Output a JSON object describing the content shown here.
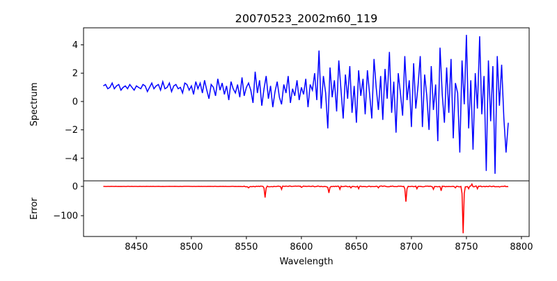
{
  "chart_data": {
    "type": "line",
    "title": "20070523_2002m60_119",
    "xlabel": "Wavelength",
    "xlim": [
      8402,
      8807
    ],
    "xticks": [
      8450,
      8500,
      8550,
      8600,
      8650,
      8700,
      8750,
      8800
    ],
    "panels": [
      {
        "name": "spectrum",
        "ylabel": "Spectrum",
        "ylim": [
          -5.6,
          5.2
        ],
        "yticks": [
          4,
          2,
          0,
          -2,
          -4
        ],
        "color": "#0000ff",
        "x_start": 8420,
        "x_step": 2,
        "values": [
          1.1,
          1.2,
          0.9,
          1.0,
          1.3,
          0.9,
          1.1,
          1.2,
          0.8,
          1.0,
          1.1,
          0.9,
          1.2,
          1.0,
          0.8,
          1.1,
          1.0,
          0.9,
          1.2,
          1.1,
          0.7,
          1.0,
          1.3,
          0.9,
          1.1,
          1.2,
          0.8,
          1.4,
          0.9,
          1.0,
          1.3,
          0.7,
          1.1,
          1.2,
          0.9,
          1.0,
          0.6,
          1.3,
          1.2,
          0.8,
          1.1,
          0.5,
          1.4,
          0.9,
          1.3,
          0.6,
          1.5,
          0.8,
          0.2,
          1.2,
          1.0,
          0.4,
          1.6,
          0.8,
          1.3,
          0.5,
          1.1,
          0.1,
          1.4,
          0.9,
          0.6,
          1.2,
          0.3,
          1.7,
          0.4,
          1.0,
          1.3,
          0.8,
          -0.1,
          2.1,
          0.6,
          1.5,
          -0.3,
          0.9,
          1.8,
          0.2,
          1.1,
          -0.4,
          0.7,
          1.4,
          0.3,
          -0.2,
          1.2,
          0.6,
          1.8,
          -0.1,
          0.9,
          0.4,
          1.5,
          0.1,
          1.0,
          0.5,
          1.6,
          -0.4,
          1.2,
          0.8,
          2.0,
          0.1,
          3.6,
          -0.5,
          1.8,
          0.6,
          -1.9,
          2.4,
          0.3,
          1.5,
          -0.7,
          2.9,
          0.8,
          -1.2,
          1.9,
          0.2,
          2.5,
          -0.8,
          1.1,
          -1.5,
          2.2,
          0.4,
          1.6,
          -0.9,
          2.2,
          0.5,
          -1.2,
          3.0,
          1.0,
          -0.6,
          1.8,
          -1.3,
          2.3,
          0.2,
          3.5,
          -0.8,
          1.4,
          -2.2,
          2.0,
          0.6,
          -1.0,
          3.2,
          0.1,
          1.5,
          -1.8,
          2.7,
          -0.5,
          1.1,
          3.2,
          -1.8,
          1.9,
          0.4,
          -2.0,
          2.5,
          -0.6,
          1.2,
          -2.8,
          3.8,
          0.5,
          -1.5,
          2.4,
          -0.8,
          3.0,
          -2.6,
          1.3,
          0.6,
          -3.6,
          2.9,
          -0.2,
          4.7,
          -1.9,
          1.5,
          -3.4,
          2.0,
          -0.5,
          4.6,
          -0.9,
          1.8,
          -4.9,
          2.9,
          -1.4,
          2.5,
          -5.1,
          3.2,
          -0.3,
          2.6,
          -1.2,
          -3.6,
          -1.5
        ]
      },
      {
        "name": "error",
        "ylabel": "Error",
        "ylim": [
          -171,
          19
        ],
        "yticks": [
          0,
          -100
        ],
        "color": "#ff0000",
        "x_range": [
          8420,
          8788
        ],
        "baseline": 0,
        "dips": [
          [
            8552,
            -5
          ],
          [
            8567,
            -38
          ],
          [
            8582,
            -10
          ],
          [
            8600,
            -3
          ],
          [
            8625,
            -22
          ],
          [
            8635,
            -10
          ],
          [
            8645,
            -5
          ],
          [
            8652,
            -8
          ],
          [
            8670,
            -5
          ],
          [
            8695,
            -52
          ],
          [
            8705,
            -8
          ],
          [
            8720,
            -10
          ],
          [
            8727,
            -15
          ],
          [
            8740,
            -5
          ],
          [
            8747,
            -160
          ],
          [
            8752,
            -8
          ],
          [
            8755,
            8
          ],
          [
            8760,
            -8
          ],
          [
            8780,
            -2
          ]
        ]
      }
    ]
  }
}
